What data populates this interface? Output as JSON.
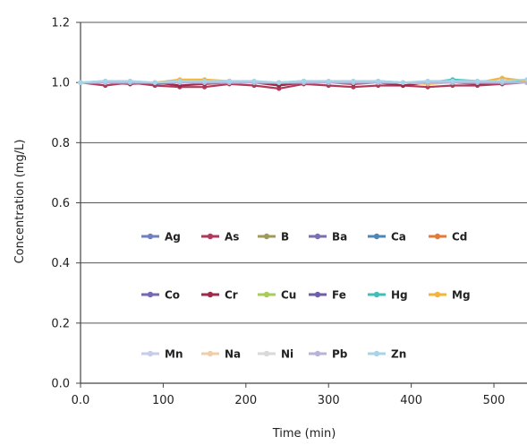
{
  "chart_data": {
    "type": "line",
    "title": "",
    "xlabel": "Time (min)",
    "ylabel": "Concentration (mg/L)",
    "xlim": [
      0,
      540
    ],
    "ylim": [
      0,
      1.2
    ],
    "x_ticks": [
      0,
      100,
      200,
      300,
      400,
      500
    ],
    "x_tick_labels": [
      "0.0",
      "100",
      "200",
      "300",
      "400",
      "500"
    ],
    "y_ticks": [
      0,
      0.2,
      0.4,
      0.6,
      0.8,
      1.0,
      1.2
    ],
    "y_tick_labels": [
      "0.0",
      "0.2",
      "0.4",
      "0.6",
      "0.8",
      "1.0",
      "1.2"
    ],
    "grid": "horizontal",
    "legend_position": "inside-center",
    "x": [
      0,
      30,
      60,
      90,
      120,
      150,
      180,
      210,
      240,
      270,
      300,
      330,
      360,
      390,
      420,
      450,
      480,
      510,
      540
    ],
    "series": [
      {
        "name": "Ag",
        "color": "#6f7fbf",
        "values": [
          1.0,
          1.0,
          1.0,
          0.995,
          1.0,
          1.0,
          1.0,
          1.0,
          0.995,
          1.0,
          1.0,
          1.0,
          1.0,
          1.0,
          1.0,
          1.0,
          1.0,
          1.0,
          1.0
        ]
      },
      {
        "name": "As",
        "color": "#b03a5b",
        "values": [
          1.0,
          0.99,
          1.0,
          0.99,
          0.985,
          0.985,
          0.995,
          0.99,
          0.98,
          0.995,
          0.99,
          0.985,
          0.99,
          0.99,
          0.985,
          0.99,
          0.99,
          0.995,
          1.0
        ]
      },
      {
        "name": "B",
        "color": "#a09a5a",
        "values": [
          1.0,
          1.0,
          1.0,
          1.0,
          1.0,
          1.0,
          1.005,
          1.0,
          1.0,
          1.0,
          1.0,
          1.0,
          1.0,
          1.0,
          1.0,
          1.0,
          1.0,
          1.0,
          1.0
        ]
      },
      {
        "name": "Ba",
        "color": "#7a6fb0",
        "values": [
          1.0,
          1.0,
          1.0,
          1.0,
          1.0,
          1.0,
          1.0,
          1.0,
          1.0,
          1.0,
          1.0,
          1.0,
          1.0,
          1.0,
          1.0,
          1.0,
          1.0,
          1.0,
          1.0
        ]
      },
      {
        "name": "Ca",
        "color": "#4f86b8",
        "values": [
          1.0,
          1.0,
          1.0,
          1.0,
          1.0,
          1.0,
          1.0,
          1.0,
          1.0,
          1.0,
          1.0,
          1.0,
          1.0,
          1.0,
          1.0,
          1.0,
          1.0,
          1.0,
          1.0
        ]
      },
      {
        "name": "Cd",
        "color": "#e07b39",
        "values": [
          1.0,
          1.0,
          1.0,
          1.0,
          1.0,
          1.0,
          1.0,
          1.0,
          1.0,
          1.0,
          1.0,
          1.0,
          1.0,
          1.0,
          1.0,
          1.0,
          1.0,
          1.0,
          1.0
        ]
      },
      {
        "name": "Co",
        "color": "#7469b6",
        "values": [
          1.0,
          1.0,
          1.0,
          1.0,
          1.0,
          1.0,
          1.0,
          1.0,
          1.0,
          1.0,
          1.0,
          1.0,
          1.0,
          1.0,
          1.0,
          1.0,
          1.0,
          1.0,
          1.0
        ]
      },
      {
        "name": "Cr",
        "color": "#9e2a4a",
        "values": [
          1.0,
          1.0,
          0.995,
          1.0,
          0.99,
          0.995,
          1.0,
          1.0,
          0.99,
          1.0,
          1.0,
          0.995,
          1.0,
          0.99,
          1.0,
          1.0,
          0.995,
          1.0,
          1.0
        ]
      },
      {
        "name": "Cu",
        "color": "#a8cc5a",
        "values": [
          1.0,
          1.0,
          1.0,
          1.0,
          1.0,
          1.0,
          1.0,
          1.0,
          1.0,
          1.0,
          1.0,
          1.0,
          1.0,
          1.0,
          1.0,
          1.0,
          1.0,
          1.0,
          1.0
        ]
      },
      {
        "name": "Fe",
        "color": "#6e5fa8",
        "values": [
          1.0,
          1.0,
          1.0,
          1.0,
          1.0,
          1.0,
          1.0,
          1.0,
          1.0,
          1.0,
          1.0,
          1.0,
          1.0,
          1.0,
          1.0,
          1.0,
          1.0,
          1.0,
          1.0
        ]
      },
      {
        "name": "Hg",
        "color": "#3fbfb8",
        "values": [
          1.0,
          1.005,
          1.0,
          1.0,
          1.0,
          1.0,
          1.0,
          1.0,
          1.0,
          1.005,
          1.0,
          1.0,
          1.005,
          1.0,
          1.0,
          1.01,
          1.005,
          1.0,
          1.005
        ]
      },
      {
        "name": "Mg",
        "color": "#f2b43a",
        "values": [
          1.0,
          1.0,
          1.0,
          1.0,
          1.01,
          1.01,
          1.005,
          1.0,
          1.0,
          1.0,
          1.0,
          1.0,
          1.0,
          1.0,
          0.995,
          1.0,
          1.0,
          1.015,
          1.005
        ]
      },
      {
        "name": "Mn",
        "color": "#c6cde8",
        "values": [
          1.0,
          1.0,
          1.0,
          1.0,
          1.0,
          1.0,
          1.0,
          1.0,
          1.0,
          1.0,
          1.0,
          1.0,
          1.0,
          1.0,
          1.0,
          1.0,
          1.0,
          1.0,
          1.0
        ]
      },
      {
        "name": "Na",
        "color": "#f0cfa8",
        "values": [
          1.0,
          1.0,
          1.0,
          1.0,
          1.0,
          1.0,
          1.0,
          1.0,
          1.0,
          1.0,
          1.0,
          1.0,
          1.0,
          1.0,
          1.0,
          1.0,
          1.0,
          1.0,
          1.0
        ]
      },
      {
        "name": "Ni",
        "color": "#d9d9d9",
        "values": [
          1.0,
          1.0,
          1.0,
          1.0,
          1.0,
          1.0,
          1.0,
          1.0,
          1.0,
          1.0,
          1.0,
          1.0,
          1.0,
          1.0,
          1.0,
          1.0,
          1.0,
          1.0,
          1.0
        ]
      },
      {
        "name": "Pb",
        "color": "#b9b3da",
        "values": [
          1.0,
          1.0,
          1.0,
          1.0,
          1.0,
          1.0,
          1.0,
          1.0,
          1.0,
          1.0,
          1.0,
          1.0,
          1.0,
          1.0,
          1.0,
          1.0,
          1.0,
          1.0,
          1.0
        ]
      },
      {
        "name": "Zn",
        "color": "#a8d4ea",
        "values": [
          1.0,
          1.005,
          1.005,
          1.0,
          1.005,
          1.005,
          1.005,
          1.005,
          1.0,
          1.005,
          1.005,
          1.005,
          1.005,
          1.0,
          1.005,
          1.005,
          1.005,
          1.005,
          1.01
        ]
      }
    ]
  }
}
